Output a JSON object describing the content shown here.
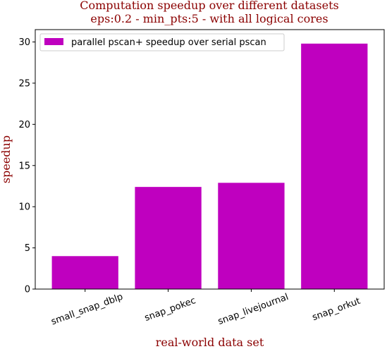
{
  "chart_data": {
    "type": "bar",
    "title_lines": [
      "Computation speedup over different datasets",
      "eps:0.2 - min_pts:5 - with all logical cores"
    ],
    "xlabel": "real-world data set",
    "ylabel": "speedup",
    "categories": [
      "small_snap_dblp",
      "snap_pokec",
      "snap_livejournal",
      "snap_orkut"
    ],
    "series": [
      {
        "name": "parallel pscan+ speedup over serial pscan",
        "values": [
          4.0,
          12.4,
          12.9,
          29.8
        ],
        "color": "#bf00bf"
      }
    ],
    "ylim": [
      0,
      31.5
    ],
    "yticks": [
      0,
      5,
      10,
      15,
      20,
      25,
      30
    ],
    "grid": false,
    "legend_position": "top-left",
    "title_color": "#8b0000",
    "label_color": "#8b0000",
    "x_tick_rotation": -20
  }
}
